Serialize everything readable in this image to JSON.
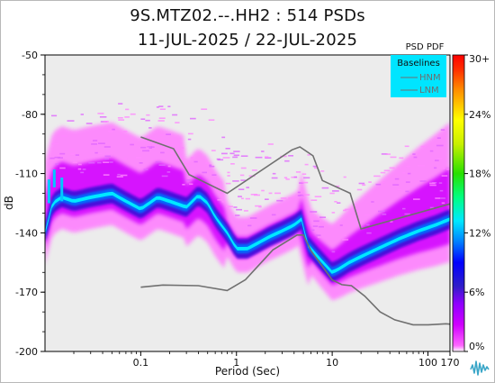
{
  "chart_data": {
    "type": "heatmap",
    "title": "9S.MTZ02.--.HH2 : 514 PSDs",
    "subtitle": "11-JUL-2025 / 22-JUL-2025",
    "xlabel": "Period (Sec)",
    "ylabel": "dB",
    "x_scale": "log",
    "xlim": [
      0.01,
      170
    ],
    "ylim": [
      -200,
      -50
    ],
    "x_ticks": [
      {
        "value": 0.1,
        "label": "0.1"
      },
      {
        "value": 1,
        "label": "1"
      },
      {
        "value": 10,
        "label": "10"
      },
      {
        "value": 100,
        "label": "100"
      },
      {
        "value": 170,
        "label": "170"
      }
    ],
    "y_ticks": [
      {
        "value": -50,
        "label": "-50"
      },
      {
        "value": -80,
        "label": "-80"
      },
      {
        "value": -110,
        "label": "-110"
      },
      {
        "value": -140,
        "label": "-140"
      },
      {
        "value": -170,
        "label": "-170"
      },
      {
        "value": -200,
        "label": "-200"
      }
    ],
    "colorbar": {
      "title": "PSD PDF",
      "range": [
        0,
        30
      ],
      "ticks": [
        {
          "value": 30,
          "label": "30+"
        },
        {
          "value": 24,
          "label": "24%"
        },
        {
          "value": 18,
          "label": "18%"
        },
        {
          "value": 12,
          "label": "12%"
        },
        {
          "value": 6,
          "label": "6%"
        },
        {
          "value": 0,
          "label": "0%"
        }
      ]
    },
    "legend": {
      "title": "Baselines",
      "position": "top-right",
      "entries": [
        "HNM",
        "LNM"
      ]
    },
    "series": [
      {
        "name": "HNM",
        "x": [
          0.1,
          0.22,
          0.32,
          0.8,
          3.8,
          4.6,
          6.3,
          7.9,
          15.4,
          20,
          354.8
        ],
        "y": [
          -91.5,
          -97.4,
          -110.5,
          -120,
          -98,
          -96.5,
          -101,
          -113.5,
          -120,
          -138,
          -121
        ]
      },
      {
        "name": "LNM",
        "x": [
          0.1,
          0.17,
          0.4,
          0.8,
          1.24,
          2.4,
          4.3,
          5,
          6,
          10,
          12.6,
          15.9,
          21.9,
          31.6,
          45,
          70,
          101,
          154,
          328.6
        ],
        "y": [
          -167.5,
          -166.4,
          -166.7,
          -169.2,
          -163.7,
          -148.6,
          -141.1,
          -141.1,
          -149,
          -163.8,
          -166.2,
          -166.7,
          -172,
          -180,
          -184,
          -186.5,
          -186.5,
          -186,
          -187.3
        ]
      },
      {
        "name": "PDF mode",
        "x": [
          0.01,
          0.012,
          0.015,
          0.02,
          0.03,
          0.05,
          0.07,
          0.1,
          0.15,
          0.2,
          0.3,
          0.4,
          0.5,
          0.6,
          0.8,
          1,
          1.3,
          1.7,
          2.2,
          3,
          4,
          4.8,
          5.5,
          6.5,
          8,
          10,
          12,
          15,
          20,
          30,
          50,
          80,
          120,
          170
        ],
        "y": [
          -140,
          -125,
          -122,
          -124,
          -122,
          -120,
          -124,
          -128,
          -122,
          -124,
          -127,
          -121,
          -125,
          -132,
          -140,
          -148,
          -148,
          -145,
          -142,
          -139,
          -136,
          -133,
          -146,
          -150,
          -155,
          -160,
          -158,
          -155,
          -152,
          -148,
          -143,
          -139,
          -136,
          -133
        ]
      }
    ]
  },
  "legend_swatch_color": "#00e5ff",
  "colorscale": [
    "#ffffff",
    "#ff66ff",
    "#d000ff",
    "#9000ff",
    "#2f1ec8",
    "#0000ff",
    "#0080ff",
    "#00e8ff",
    "#00ff80",
    "#28e000",
    "#c8f000",
    "#ffff00",
    "#ff9000",
    "#ff3000",
    "#ff0000"
  ]
}
